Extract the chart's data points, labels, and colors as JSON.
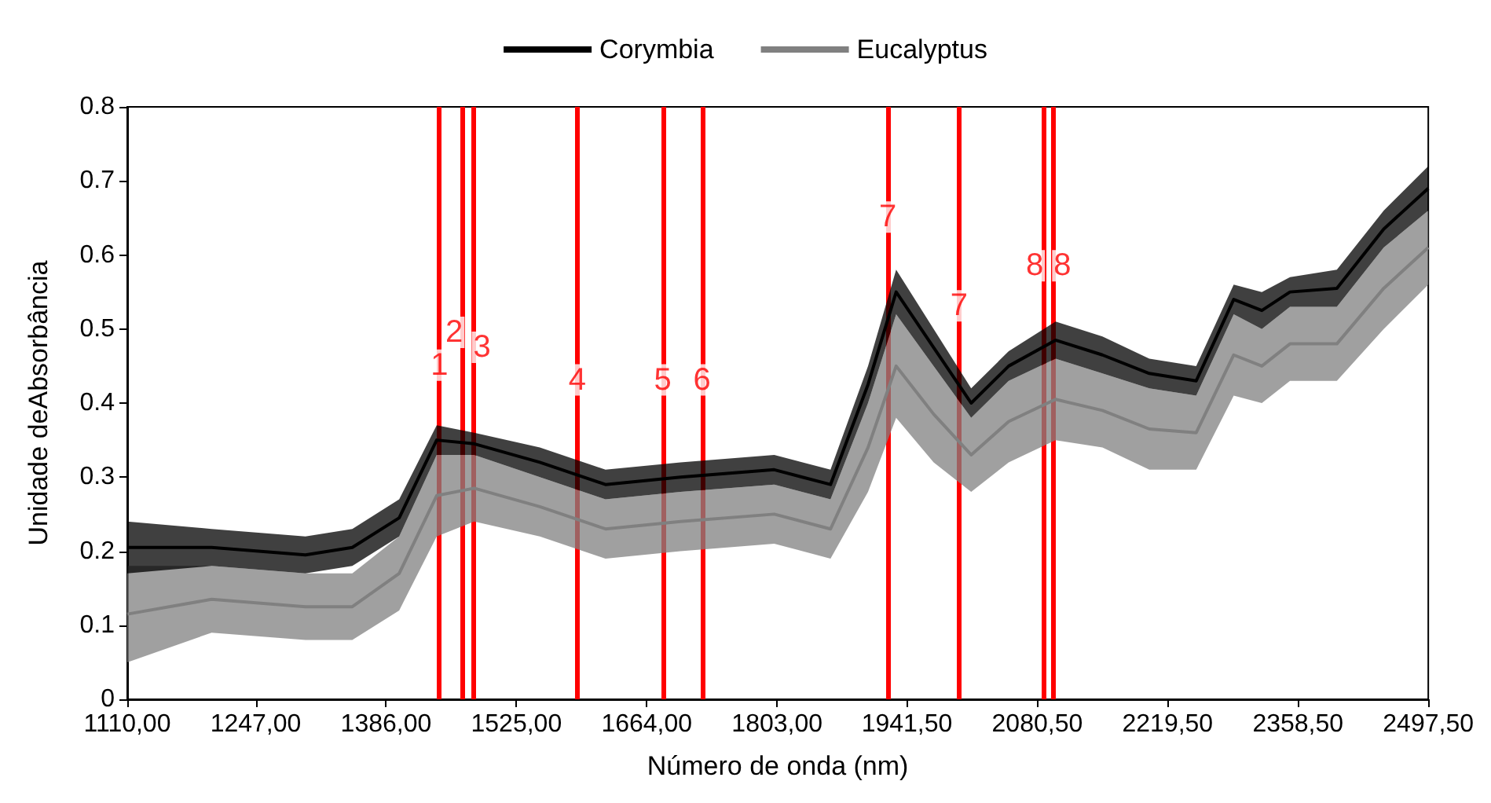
{
  "chart_data": {
    "type": "line",
    "xlabel": "Número de onda (nm)",
    "ylabel": "Unidade deAbsorbância",
    "xlim": [
      1110,
      2497.5
    ],
    "xticks": [
      {
        "value": 1110,
        "label": "1110,00"
      },
      {
        "value": 1247,
        "label": "1247,00"
      },
      {
        "value": 1386,
        "label": "1386,00"
      },
      {
        "value": 1525,
        "label": "1525,00"
      },
      {
        "value": 1664,
        "label": "1664,00"
      },
      {
        "value": 1803,
        "label": "1803,00"
      },
      {
        "value": 1941.5,
        "label": "1941,50"
      },
      {
        "value": 2080.5,
        "label": "2080,50"
      },
      {
        "value": 2219.5,
        "label": "2219,50"
      },
      {
        "value": 2358.5,
        "label": "2358,50"
      },
      {
        "value": 2497.5,
        "label": "2497,50"
      }
    ],
    "ylim": [
      0,
      0.8
    ],
    "yticks": [
      0,
      0.1,
      0.2,
      0.3,
      0.4,
      0.5,
      0.6,
      0.7,
      0.8
    ],
    "grid": false,
    "legend": "top",
    "series": [
      {
        "name": "Corymbia",
        "color": "#000000",
        "x": [
          1110,
          1200,
          1300,
          1350,
          1400,
          1440,
          1480,
          1550,
          1620,
          1700,
          1800,
          1860,
          1900,
          1930,
          1970,
          2010,
          2050,
          2100,
          2150,
          2200,
          2250,
          2290,
          2320,
          2350,
          2400,
          2450,
          2497.5
        ],
        "upper": [
          0.24,
          0.23,
          0.22,
          0.23,
          0.27,
          0.37,
          0.36,
          0.34,
          0.31,
          0.32,
          0.33,
          0.31,
          0.45,
          0.58,
          0.5,
          0.42,
          0.47,
          0.51,
          0.49,
          0.46,
          0.45,
          0.56,
          0.55,
          0.57,
          0.58,
          0.66,
          0.72
        ],
        "lower": [
          0.17,
          0.18,
          0.17,
          0.18,
          0.22,
          0.33,
          0.33,
          0.3,
          0.27,
          0.28,
          0.29,
          0.27,
          0.4,
          0.52,
          0.45,
          0.38,
          0.43,
          0.46,
          0.44,
          0.42,
          0.41,
          0.52,
          0.5,
          0.53,
          0.53,
          0.61,
          0.66
        ],
        "values": [
          0.205,
          0.205,
          0.195,
          0.205,
          0.245,
          0.35,
          0.345,
          0.32,
          0.29,
          0.3,
          0.31,
          0.29,
          0.425,
          0.55,
          0.475,
          0.4,
          0.45,
          0.485,
          0.465,
          0.44,
          0.43,
          0.54,
          0.525,
          0.55,
          0.555,
          0.635,
          0.69
        ]
      },
      {
        "name": "Eucalyptus",
        "color": "#808080",
        "x": [
          1110,
          1200,
          1300,
          1350,
          1400,
          1440,
          1480,
          1550,
          1620,
          1700,
          1800,
          1860,
          1900,
          1930,
          1970,
          2010,
          2050,
          2100,
          2150,
          2200,
          2250,
          2290,
          2320,
          2350,
          2400,
          2450,
          2497.5
        ],
        "upper": [
          0.18,
          0.18,
          0.17,
          0.17,
          0.22,
          0.33,
          0.33,
          0.3,
          0.27,
          0.28,
          0.29,
          0.27,
          0.4,
          0.52,
          0.45,
          0.38,
          0.43,
          0.46,
          0.44,
          0.42,
          0.41,
          0.52,
          0.5,
          0.53,
          0.53,
          0.61,
          0.66
        ],
        "lower": [
          0.05,
          0.09,
          0.08,
          0.08,
          0.12,
          0.22,
          0.24,
          0.22,
          0.19,
          0.2,
          0.21,
          0.19,
          0.28,
          0.38,
          0.32,
          0.28,
          0.32,
          0.35,
          0.34,
          0.31,
          0.31,
          0.41,
          0.4,
          0.43,
          0.43,
          0.5,
          0.56
        ],
        "values": [
          0.115,
          0.135,
          0.125,
          0.125,
          0.17,
          0.275,
          0.285,
          0.26,
          0.23,
          0.24,
          0.25,
          0.23,
          0.34,
          0.45,
          0.385,
          0.33,
          0.375,
          0.405,
          0.39,
          0.365,
          0.36,
          0.465,
          0.45,
          0.48,
          0.48,
          0.555,
          0.61
        ]
      }
    ],
    "ref_lines": [
      {
        "axis": "x",
        "value": 1443,
        "color": "#ff0000"
      },
      {
        "axis": "x",
        "value": 1468,
        "color": "#ff0000"
      },
      {
        "axis": "x",
        "value": 1479,
        "color": "#ff0000"
      },
      {
        "axis": "x",
        "value": 1590,
        "color": "#ff0000"
      },
      {
        "axis": "x",
        "value": 1681,
        "color": "#ff0000"
      },
      {
        "axis": "x",
        "value": 1723,
        "color": "#ff0000"
      },
      {
        "axis": "x",
        "value": 1921,
        "color": "#ff0000"
      },
      {
        "axis": "x",
        "value": 1997,
        "color": "#ff0000"
      },
      {
        "axis": "x",
        "value": 2087,
        "color": "#ff0000"
      },
      {
        "axis": "x",
        "value": 2098,
        "color": "#ff0000"
      }
    ],
    "annotations": [
      {
        "text": "1",
        "x": 1443,
        "y": 0.43
      },
      {
        "text": "2",
        "x": 1468,
        "y": 0.47
      },
      {
        "text": "3",
        "x": 1479,
        "y": 0.45
      },
      {
        "text": "4",
        "x": 1590,
        "y": 0.41
      },
      {
        "text": "5",
        "x": 1681,
        "y": 0.41
      },
      {
        "text": "6",
        "x": 1723,
        "y": 0.41
      },
      {
        "text": "7",
        "x": 1921,
        "y": 0.63
      },
      {
        "text": "7",
        "x": 1997,
        "y": 0.51
      },
      {
        "text": "8",
        "x": 2087,
        "y": 0.56
      },
      {
        "text": "8",
        "x": 2098,
        "y": 0.56
      }
    ]
  }
}
